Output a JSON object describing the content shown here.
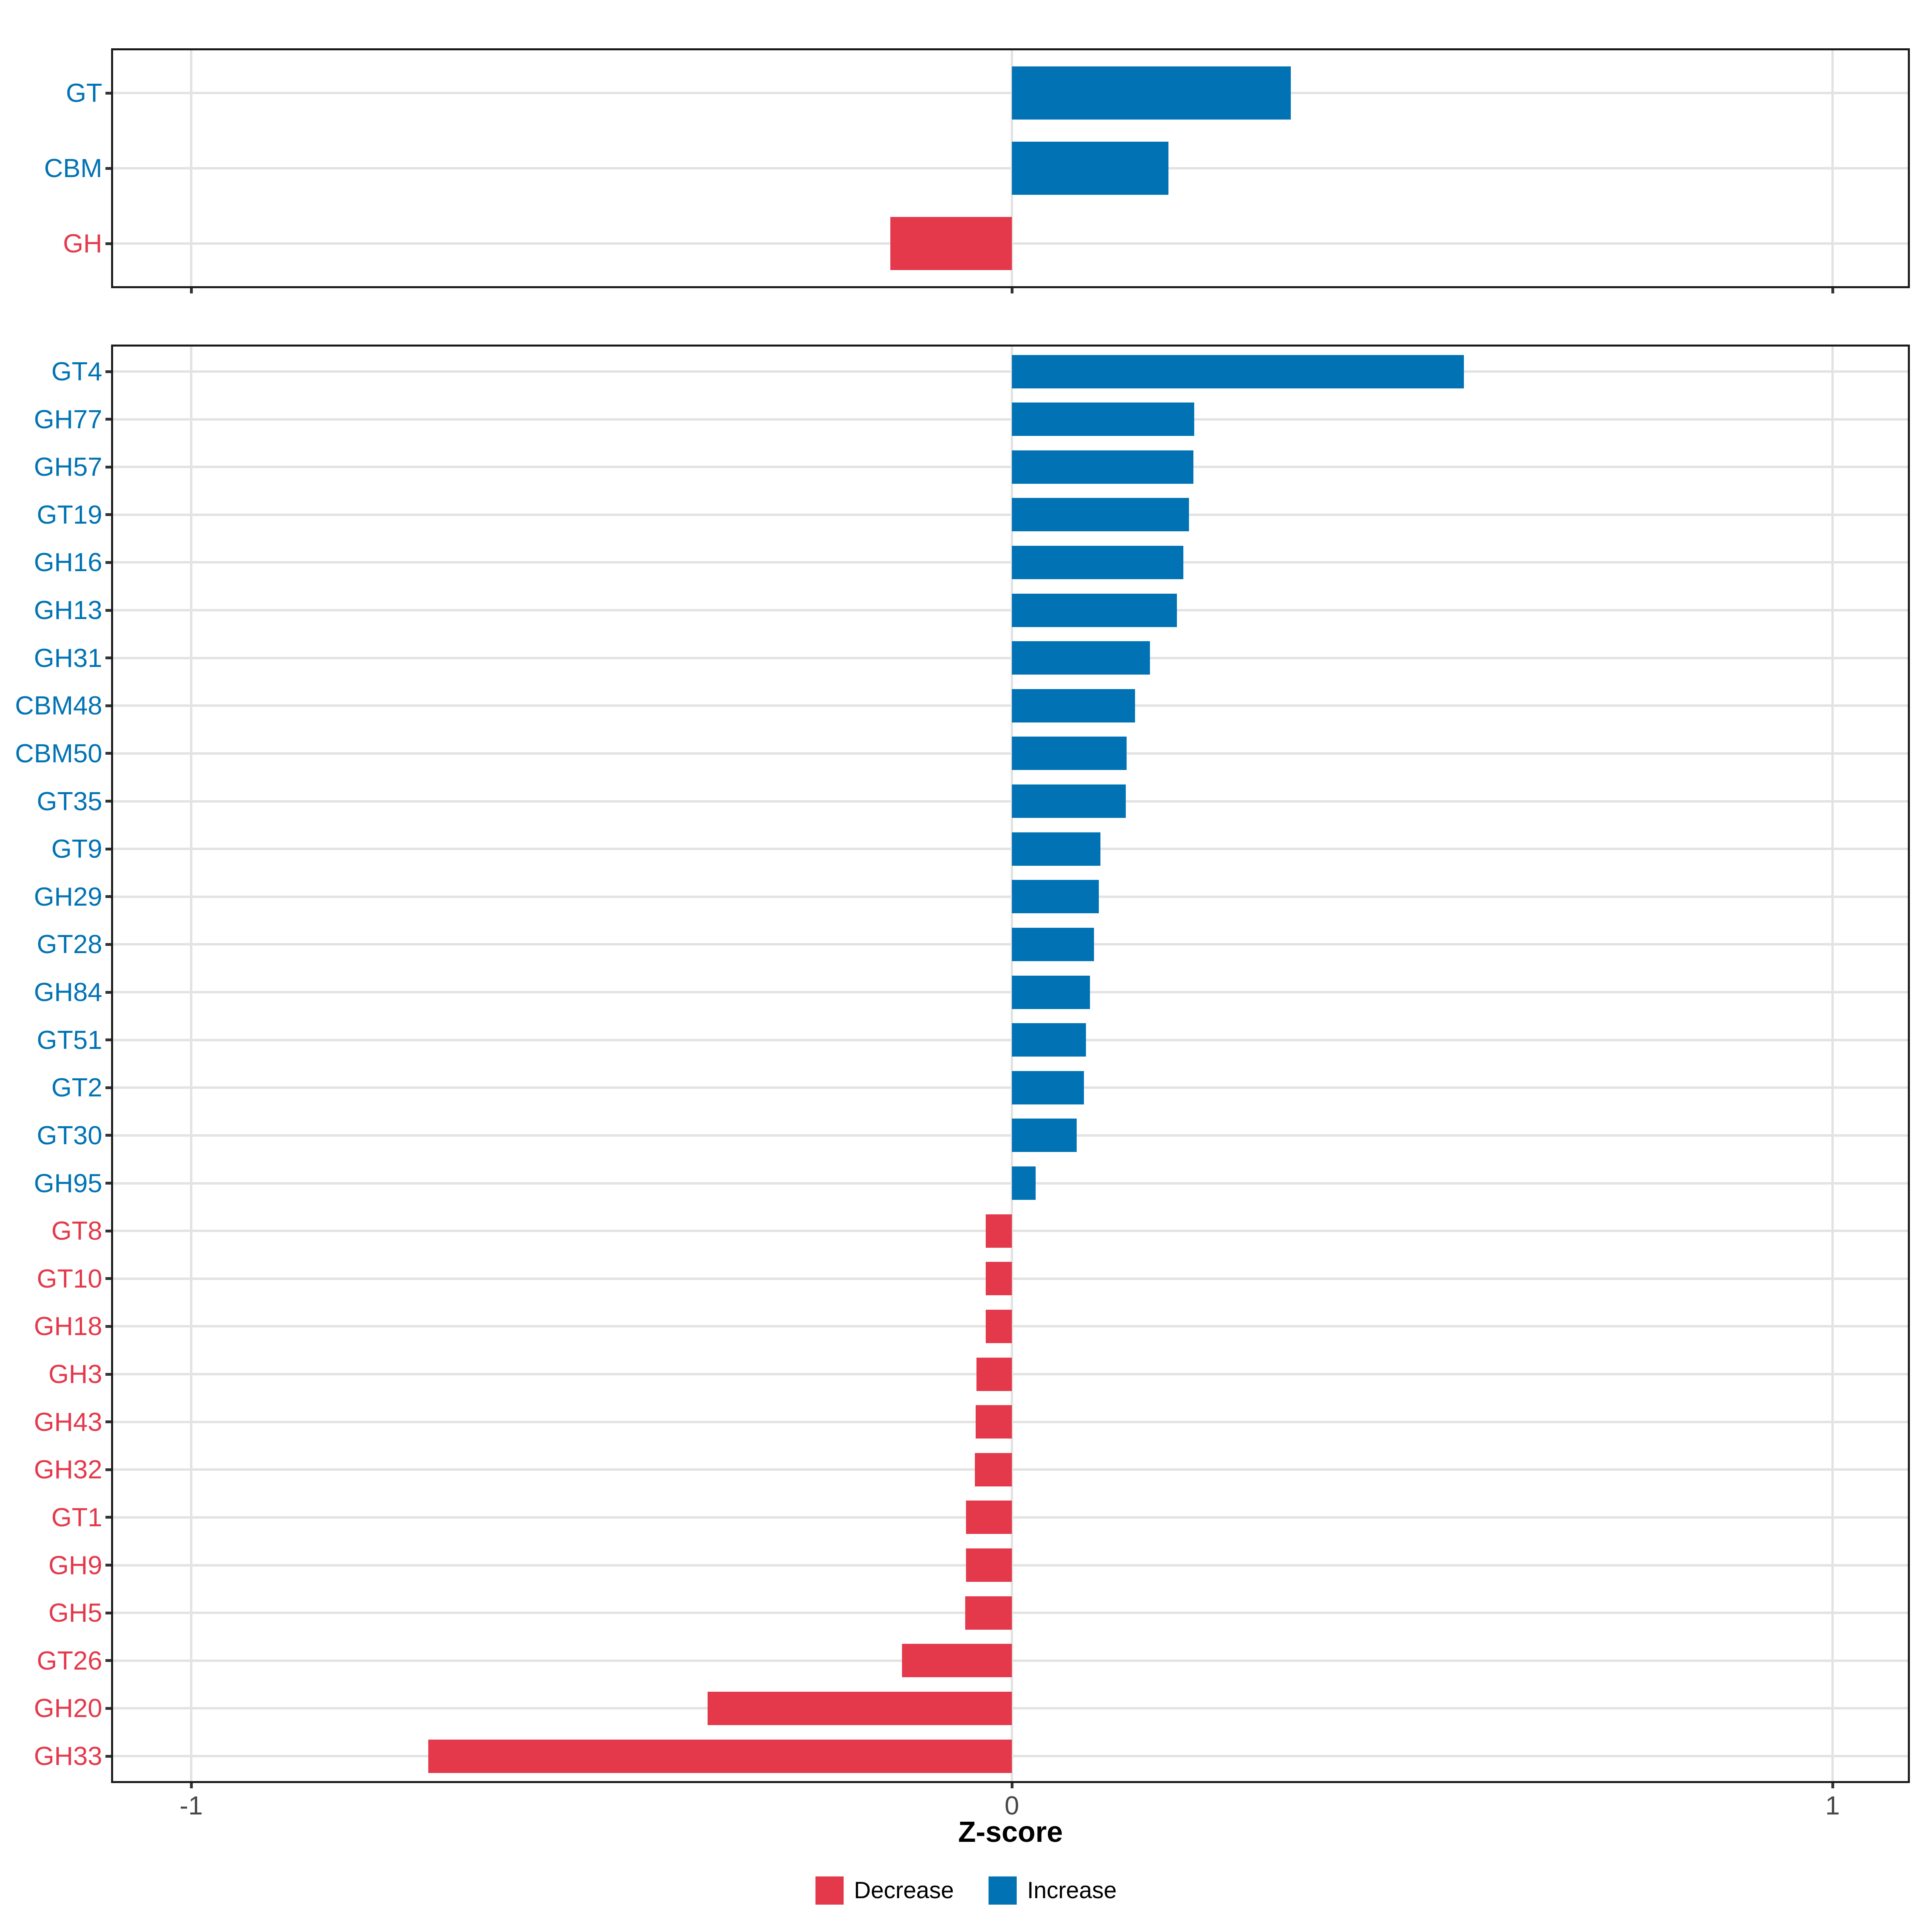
{
  "axis": {
    "title": "Z-score",
    "range": [
      -1.094,
      1.094
    ],
    "ticks": [
      {
        "value": -1,
        "label": "-1"
      },
      {
        "value": 0,
        "label": "0"
      },
      {
        "value": 1,
        "label": "1"
      }
    ]
  },
  "legend": {
    "items": [
      {
        "label": "Decrease",
        "direction": "Decrease"
      },
      {
        "label": "Increase",
        "direction": "Increase"
      }
    ]
  },
  "colors": {
    "increase": "#0173b4",
    "decrease": "#e4394b",
    "grid": "#e3e3e3",
    "panel_border": "#1a1a1a",
    "tick_mark": "#333333",
    "axis_text": "#474747",
    "axis_title": "#000000",
    "background": "#ffffff"
  },
  "chart_data": [
    {
      "type": "bar",
      "orientation": "horizontal",
      "panel_id": "cazyme-class-summary",
      "xlabel": "Z-score",
      "xlim": [
        -1.1,
        1.1
      ],
      "grid": "major",
      "legend_position": "bottom",
      "categories": [
        "GT",
        "CBM",
        "GH"
      ],
      "values": [
        0.34,
        0.191,
        -0.148
      ],
      "direction": [
        "Increase",
        "Increase",
        "Decrease"
      ]
    },
    {
      "type": "bar",
      "orientation": "horizontal",
      "panel_id": "cazyme-families",
      "xlabel": "Z-score",
      "xlim": [
        -1.1,
        1.1
      ],
      "grid": "major",
      "legend_position": "bottom",
      "categories": [
        "GT4",
        "GH77",
        "GH57",
        "GT19",
        "GH16",
        "GH13",
        "GH31",
        "CBM48",
        "CBM50",
        "GT35",
        "GT9",
        "GH29",
        "GT28",
        "GH84",
        "GT51",
        "GT2",
        "GT30",
        "GH95",
        "GT8",
        "GT10",
        "GH18",
        "GH3",
        "GH43",
        "GH32",
        "GT1",
        "GH9",
        "GH5",
        "GT26",
        "GH20",
        "GH33"
      ],
      "values": [
        0.551,
        0.222,
        0.221,
        0.216,
        0.209,
        0.201,
        0.168,
        0.15,
        0.14,
        0.139,
        0.108,
        0.106,
        0.1,
        0.095,
        0.09,
        0.088,
        0.079,
        0.029,
        -0.032,
        -0.032,
        -0.032,
        -0.043,
        -0.044,
        -0.045,
        -0.056,
        -0.056,
        -0.057,
        -0.134,
        -0.371,
        -0.711
      ],
      "direction": [
        "Increase",
        "Increase",
        "Increase",
        "Increase",
        "Increase",
        "Increase",
        "Increase",
        "Increase",
        "Increase",
        "Increase",
        "Increase",
        "Increase",
        "Increase",
        "Increase",
        "Increase",
        "Increase",
        "Increase",
        "Increase",
        "Decrease",
        "Decrease",
        "Decrease",
        "Decrease",
        "Decrease",
        "Decrease",
        "Decrease",
        "Decrease",
        "Decrease",
        "Decrease",
        "Decrease",
        "Decrease"
      ]
    }
  ]
}
